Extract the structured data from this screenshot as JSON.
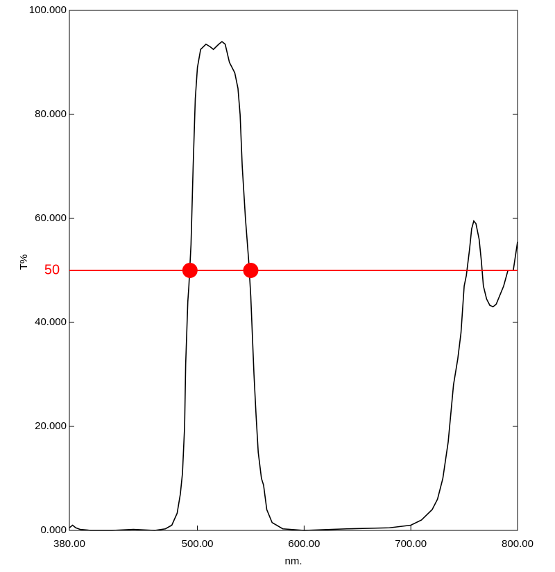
{
  "chart_data": {
    "type": "line",
    "x_label": "nm.",
    "y_label": "T%",
    "xlim": [
      380,
      800
    ],
    "ylim": [
      0,
      100
    ],
    "xticks": [
      {
        "value": 380,
        "label": "380.00"
      },
      {
        "value": 500,
        "label": "500.00"
      },
      {
        "value": 600,
        "label": "600.00"
      },
      {
        "value": 700,
        "label": "700.00"
      },
      {
        "value": 800,
        "label": "800.00"
      }
    ],
    "yticks": [
      {
        "value": 0,
        "label": "0.000"
      },
      {
        "value": 20,
        "label": "20.000"
      },
      {
        "value": 40,
        "label": "40.000"
      },
      {
        "value": 60,
        "label": "60.000"
      },
      {
        "value": 80,
        "label": "80.000"
      },
      {
        "value": 100,
        "label": "100.000"
      }
    ],
    "series": [
      {
        "color": "#000000",
        "x": [
          380,
          383,
          386,
          390,
          400,
          420,
          440,
          460,
          470,
          476,
          481,
          484,
          486,
          488,
          489,
          490,
          491,
          492,
          494,
          496,
          498,
          500,
          503,
          508,
          512,
          515,
          520,
          523,
          526,
          530,
          535,
          538,
          540,
          542,
          545,
          548,
          550,
          553,
          555,
          557,
          560,
          562,
          565,
          570,
          580,
          600,
          640,
          680,
          700,
          710,
          720,
          725,
          730,
          735,
          740,
          744,
          747,
          750,
          752,
          755,
          757,
          759,
          761,
          764,
          766,
          768,
          771,
          774,
          777,
          780,
          783,
          787,
          791,
          796,
          800
        ],
        "values": [
          0.5,
          1,
          0.5,
          0.2,
          0,
          0,
          0.2,
          0,
          0.3,
          1,
          3.3,
          7,
          11,
          20,
          32,
          38,
          44,
          47,
          55,
          70,
          83,
          89,
          92.5,
          93.5,
          93,
          92.5,
          93.5,
          94,
          93.5,
          90,
          88,
          85,
          80,
          70,
          60,
          52,
          45,
          30,
          22,
          15,
          10,
          8.7,
          4,
          1.5,
          0.3,
          0,
          0.3,
          0.5,
          1,
          2,
          4,
          6,
          10,
          17,
          28,
          33,
          38,
          47,
          49,
          54,
          58,
          59.5,
          59,
          56,
          52,
          47,
          44.5,
          43.3,
          43,
          43.5,
          45,
          47,
          50,
          50,
          55.5
        ]
      }
    ],
    "reference_line": {
      "value": 50,
      "color": "#ff0000"
    },
    "markers": {
      "x": [
        493,
        550
      ],
      "y": [
        50,
        50
      ],
      "color": "#ff0000"
    }
  }
}
